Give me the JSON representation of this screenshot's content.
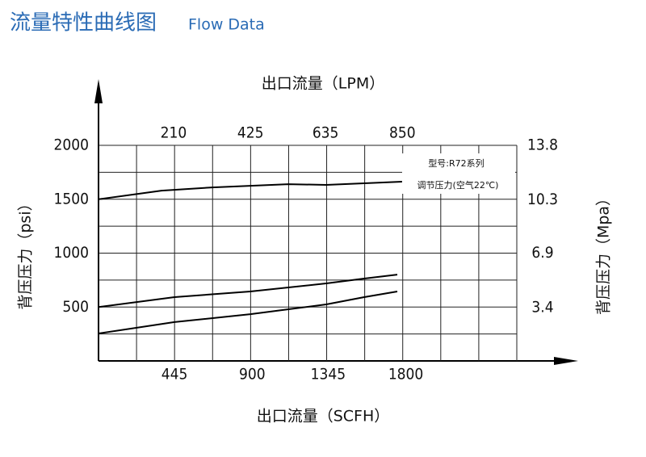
{
  "header": {
    "title": "流量特性曲线图",
    "subtitle": "Flow Data"
  },
  "chart_data": {
    "type": "line",
    "x_label": "出口流量（SCFH）",
    "x2_label": "出口流量（LPM）",
    "y_label": "背压压力（psi）",
    "y2_label": "背压压力（Mpa）",
    "annotations": [
      "型号:R72系列",
      "调节压力(空气22℃)"
    ],
    "xlim": [
      0,
      2450
    ],
    "xticks": [
      445,
      900,
      1345,
      1800
    ],
    "x2lim": [
      0,
      1170
    ],
    "x2ticks": [
      210,
      425,
      635,
      850
    ],
    "ylim": [
      0,
      2000
    ],
    "yticks": [
      500,
      1000,
      1500,
      2000
    ],
    "y2lim": [
      0,
      13.8
    ],
    "y2ticks": [
      3.4,
      6.9,
      10.3,
      13.8
    ],
    "grid": true,
    "series": [
      {
        "color": "#000000",
        "x": [
          0,
          369,
          667,
          1111,
          1334,
          1556,
          1778
        ],
        "values": [
          1500,
          1580,
          1610,
          1640,
          1633,
          1648,
          1663
        ]
      },
      {
        "color": "#000000",
        "x": [
          0,
          445,
          889,
          1334,
          1556,
          1750
        ],
        "values": [
          500,
          592,
          644,
          719,
          764,
          801
        ]
      },
      {
        "color": "#000000",
        "x": [
          0,
          445,
          889,
          1334,
          1556,
          1750
        ],
        "values": [
          255,
          360,
          434,
          524,
          592,
          644
        ]
      }
    ]
  }
}
